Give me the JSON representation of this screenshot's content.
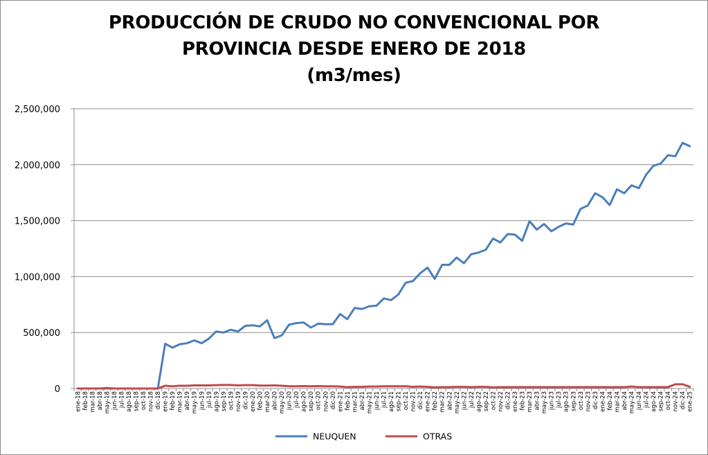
{
  "chart_data": {
    "type": "line",
    "title_lines": [
      "PRODUCCIÓN DE CRUDO NO CONVENCIONAL POR",
      "PROVINCIA DESDE ENERO DE 2018",
      "(m3/mes)"
    ],
    "xlabel": "",
    "ylabel": "",
    "ylim": [
      0,
      2500000
    ],
    "yticks": [
      0,
      500000,
      1000000,
      1500000,
      2000000,
      2500000
    ],
    "ytick_labels": [
      "0",
      "500,000",
      "1,000,000",
      "1,500,000",
      "2,000,000",
      "2,500,000"
    ],
    "grid": true,
    "legend_position": "bottom",
    "categories": [
      "ene-18",
      "feb-18",
      "mar-18",
      "abr-18",
      "may-18",
      "jun-18",
      "jul-18",
      "ago-18",
      "sep-18",
      "oct-18",
      "nov-18",
      "dic-18",
      "ene-19",
      "feb-19",
      "mar-19",
      "abr-19",
      "may-19",
      "jun-19",
      "jul-19",
      "ago-19",
      "sep-19",
      "oct-19",
      "nov-19",
      "dic-19",
      "ene-20",
      "feb-20",
      "mar-20",
      "abr-20",
      "may-20",
      "jun-20",
      "jul-20",
      "ago-20",
      "sep-20",
      "oct-20",
      "nov-20",
      "dic-20",
      "ene-21",
      "feb-21",
      "mar-21",
      "abr-21",
      "may-21",
      "jun-21",
      "jul-21",
      "ago-21",
      "sep-21",
      "oct-21",
      "nov-21",
      "dic-21",
      "ene-22",
      "feb-22",
      "mar-22",
      "abr-22",
      "may-22",
      "jun-22",
      "jul-22",
      "ago-22",
      "sep-22",
      "oct-22",
      "nov-22",
      "dic-22",
      "ene-23",
      "feb-23",
      "mar-23",
      "abr-23",
      "may-23",
      "jun-23",
      "jul-23",
      "ago-23",
      "sep-23",
      "oct-23",
      "nov-23",
      "dic-23",
      "ene-24",
      "feb-24",
      "mar-24",
      "abr-24",
      "may-24",
      "jun-24",
      "jul-24",
      "ago-24",
      "sep-24",
      "oct-24",
      "nov-24",
      "dic-24",
      "ene-25"
    ],
    "series": [
      {
        "name": "NEUQUEN",
        "color": "#4a7ebb",
        "values": [
          0,
          0,
          0,
          0,
          0,
          0,
          0,
          0,
          0,
          0,
          0,
          0,
          400000,
          365000,
          395000,
          405000,
          430000,
          405000,
          445000,
          510000,
          500000,
          525000,
          510000,
          560000,
          565000,
          555000,
          610000,
          450000,
          475000,
          570000,
          585000,
          590000,
          545000,
          580000,
          575000,
          575000,
          665000,
          620000,
          720000,
          710000,
          735000,
          740000,
          805000,
          790000,
          840000,
          945000,
          960000,
          1030000,
          1080000,
          980000,
          1105000,
          1105000,
          1170000,
          1120000,
          1200000,
          1215000,
          1240000,
          1340000,
          1305000,
          1380000,
          1375000,
          1320000,
          1495000,
          1420000,
          1470000,
          1405000,
          1445000,
          1475000,
          1465000,
          1605000,
          1635000,
          1745000,
          1710000,
          1640000,
          1780000,
          1745000,
          1815000,
          1790000,
          1910000,
          1990000,
          2010000,
          2085000,
          2075000,
          2195000,
          2165000
        ]
      },
      {
        "name": "OTRAS",
        "color": "#be4b48",
        "values": [
          0,
          0,
          0,
          0,
          5000,
          0,
          0,
          0,
          0,
          0,
          0,
          0,
          25000,
          20000,
          25000,
          25000,
          28000,
          28000,
          28000,
          30000,
          32000,
          32000,
          28000,
          30000,
          30000,
          26000,
          26000,
          28000,
          25000,
          20000,
          20000,
          22000,
          20000,
          22000,
          20000,
          20000,
          18000,
          12000,
          15000,
          15000,
          18000,
          18000,
          20000,
          20000,
          20000,
          20000,
          15000,
          18000,
          15000,
          10000,
          12000,
          12000,
          15000,
          15000,
          12000,
          15000,
          15000,
          10000,
          12000,
          12000,
          12000,
          12000,
          12000,
          12000,
          12000,
          12000,
          12000,
          12000,
          12000,
          12000,
          12000,
          12000,
          12000,
          12000,
          12000,
          12000,
          18000,
          12000,
          12000,
          12000,
          12000,
          12000,
          38000,
          38000,
          15000
        ]
      }
    ]
  }
}
